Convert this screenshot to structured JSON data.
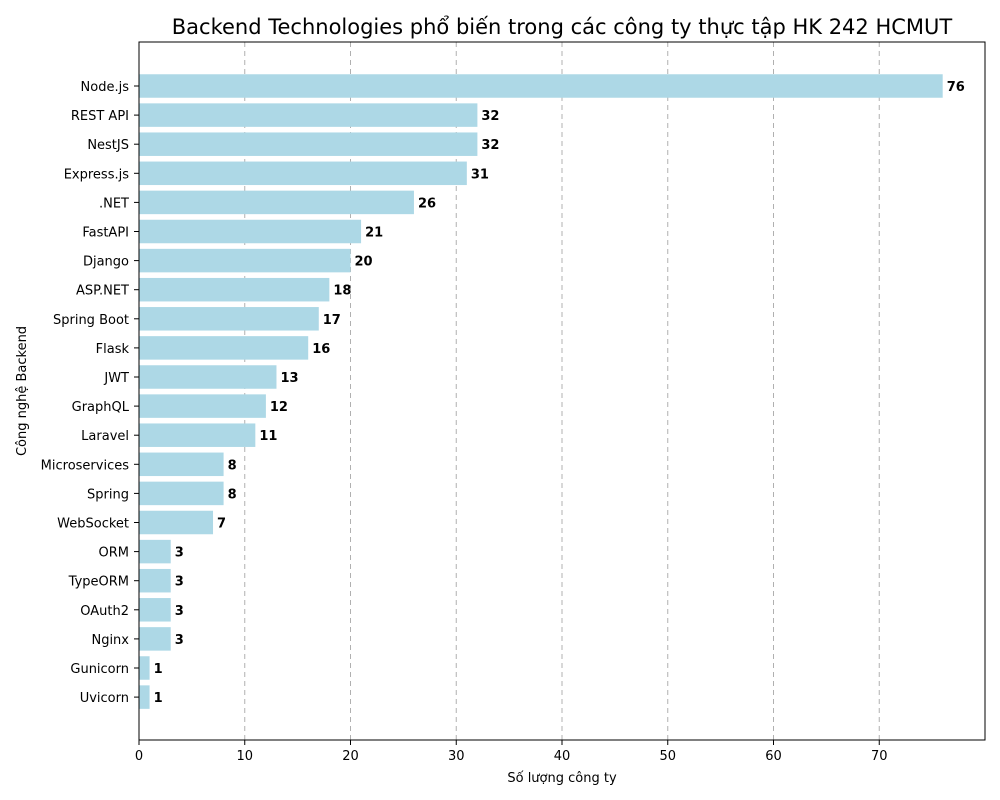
{
  "chart_data": {
    "type": "bar",
    "orientation": "horizontal",
    "title": "Backend Technologies phổ biến trong các công ty thực tập HK 242 HCMUT",
    "xlabel": "Số lượng công ty",
    "ylabel": "Công nghệ Backend",
    "categories": [
      "Node.js",
      "REST API",
      "NestJS",
      "Express.js",
      ".NET",
      "FastAPI",
      "Django",
      "ASP.NET",
      "Spring Boot",
      "Flask",
      "JWT",
      "GraphQL",
      "Laravel",
      "Microservices",
      "Spring",
      "WebSocket",
      "ORM",
      "TypeORM",
      "OAuth2",
      "Nginx",
      "Gunicorn",
      "Uvicorn"
    ],
    "values": [
      76,
      32,
      32,
      31,
      26,
      21,
      20,
      18,
      17,
      16,
      13,
      12,
      11,
      8,
      8,
      7,
      3,
      3,
      3,
      3,
      1,
      1
    ],
    "xticks": [
      0,
      10,
      20,
      30,
      40,
      50,
      60,
      70
    ],
    "xlim": [
      0,
      80
    ],
    "grid": "x-dashed",
    "bar_color": "#add8e6",
    "data_labels": true
  }
}
